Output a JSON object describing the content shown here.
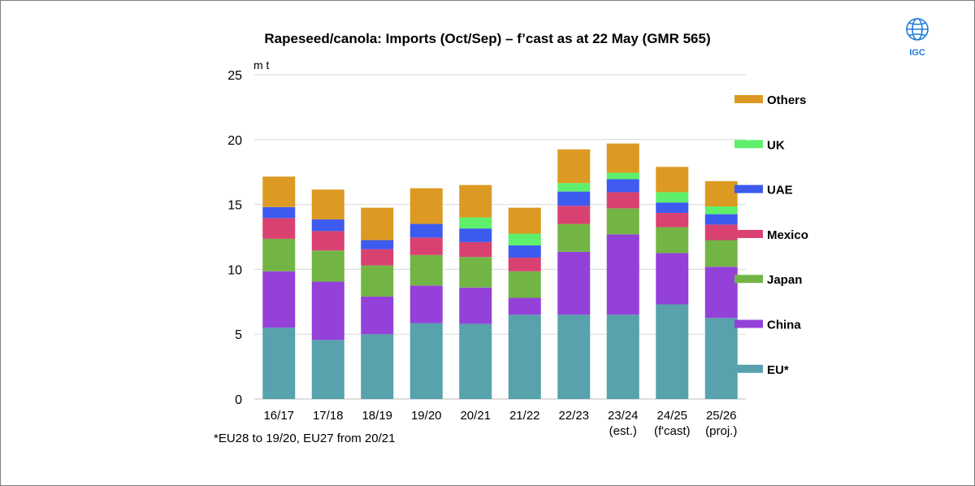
{
  "chart_data": {
    "type": "bar",
    "stacked": true,
    "title": "Rapeseed/canola: Imports (Oct/Sep) – f’cast as at 22 May (GMR 565)",
    "ylabel": "m t",
    "ylim": [
      0,
      25
    ],
    "yticks": [
      0,
      5,
      10,
      15,
      20,
      25
    ],
    "grid": true,
    "legend_position": "right",
    "categories": [
      [
        "16/17"
      ],
      [
        "17/18"
      ],
      [
        "18/19"
      ],
      [
        "19/20"
      ],
      [
        "20/21"
      ],
      [
        "21/22"
      ],
      [
        "22/23"
      ],
      [
        "23/24",
        "(est.)"
      ],
      [
        "24/25",
        "(f'cast)"
      ],
      [
        "25/26",
        "(proj.)"
      ]
    ],
    "series": [
      {
        "name": "EU*",
        "color": "#57a2ac",
        "values": [
          5.5,
          4.55,
          5.0,
          5.85,
          5.8,
          6.5,
          6.5,
          6.5,
          7.3,
          6.25
        ]
      },
      {
        "name": "China",
        "color": "#9441d9",
        "values": [
          4.35,
          4.5,
          2.9,
          2.9,
          2.8,
          1.3,
          4.85,
          6.2,
          3.95,
          3.95
        ]
      },
      {
        "name": "Japan",
        "color": "#72b545",
        "values": [
          2.5,
          2.4,
          2.4,
          2.35,
          2.35,
          2.05,
          2.15,
          2.0,
          2.0,
          2.05
        ]
      },
      {
        "name": "Mexico",
        "color": "#d94171",
        "values": [
          1.6,
          1.5,
          1.25,
          1.35,
          1.15,
          1.05,
          1.4,
          1.25,
          1.1,
          1.2
        ]
      },
      {
        "name": "UAE",
        "color": "#3d5bef",
        "values": [
          0.85,
          0.9,
          0.7,
          1.05,
          1.05,
          0.95,
          1.1,
          1.0,
          0.8,
          0.8
        ]
      },
      {
        "name": "UK",
        "color": "#5ef06c",
        "values": [
          0,
          0,
          0,
          0,
          0.85,
          0.9,
          0.65,
          0.5,
          0.8,
          0.6
        ]
      },
      {
        "name": "Others",
        "color": "#dc9a22",
        "values": [
          2.35,
          2.3,
          2.5,
          2.75,
          2.5,
          2.0,
          2.6,
          2.25,
          1.95,
          1.95
        ]
      }
    ],
    "legend_order": [
      "Others",
      "UK",
      "UAE",
      "Mexico",
      "Japan",
      "China",
      "EU*"
    ]
  },
  "footnote": "*EU28 to 19/20, EU27 from 20/21",
  "logo": {
    "text": "IGC",
    "color": "#1e7bd6"
  }
}
